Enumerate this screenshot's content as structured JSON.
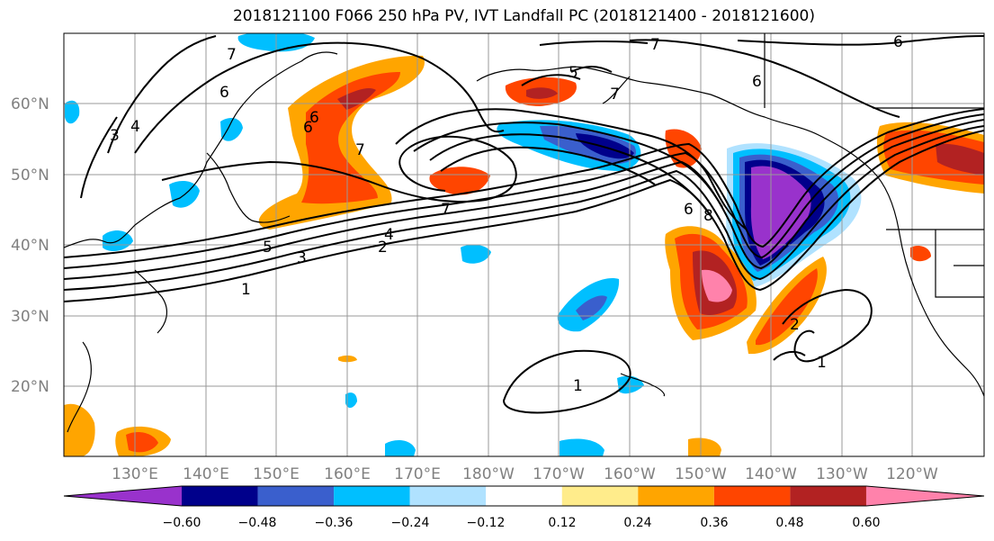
{
  "title": "2018121100 F066 250 hPa PV, IVT Landfall PC (2018121400 - 2018121600)",
  "lat_labels": [
    "60°N",
    "50°N",
    "40°N",
    "30°N",
    "20°N"
  ],
  "lon_labels": [
    "130°E",
    "140°E",
    "150°E",
    "160°E",
    "170°E",
    "180°W",
    "170°W",
    "160°W",
    "150°W",
    "140°W",
    "130°W",
    "120°W"
  ],
  "colorbar": {
    "ticks": [
      "−0.60",
      "−0.48",
      "−0.36",
      "−0.24",
      "−0.12",
      "0.12",
      "0.24",
      "0.36",
      "0.48",
      "0.60"
    ],
    "colors": [
      "#9932cc",
      "#00008b",
      "#3a5fcd",
      "#00bfff",
      "#b0e2ff",
      "#ffffff",
      "#ffec8b",
      "#ffa500",
      "#ff4500",
      "#b22222",
      "#ff82ab"
    ]
  },
  "contour_labels": [
    "7",
    "6",
    "3",
    "4",
    "1",
    "3",
    "5",
    "2",
    "4",
    "7",
    "6",
    "5",
    "7",
    "7",
    "6",
    "6",
    "8",
    "1",
    "2",
    "1",
    "6",
    "7",
    "6"
  ]
}
